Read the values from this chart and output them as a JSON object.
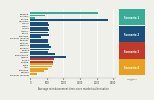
{
  "entries": [
    {
      "label": "Bulgaria",
      "value": 2050,
      "color": "#3aab96"
    },
    {
      "label": "Portugal",
      "value": 460,
      "color": "#3aab96"
    },
    {
      "label": "Estonia",
      "value": 130,
      "color": "#3aab96"
    },
    {
      "label": "Denmark",
      "value": 2350,
      "color": "#1b4f7a"
    },
    {
      "label": "Cyprus",
      "value": 545,
      "color": "#1b4f7a"
    },
    {
      "label": "Czech",
      "value": 555,
      "color": "#1b4f7a"
    },
    {
      "label": "Ireland",
      "value": 540,
      "color": "#1b4f7a"
    },
    {
      "label": "Austria",
      "value": 560,
      "color": "#1b4f7a"
    },
    {
      "label": "Latvia",
      "value": 545,
      "color": "#1b4f7a"
    },
    {
      "label": "Lithuania",
      "value": 555,
      "color": "#1b4f7a"
    },
    {
      "label": "Belgium (engine)",
      "value": 335,
      "color": "#1b4f7a"
    },
    {
      "label": "Belgium",
      "value": 545,
      "color": "#1b4f7a"
    },
    {
      "label": "Belgium",
      "value": 540,
      "color": "#1b4f7a"
    },
    {
      "label": "Romania",
      "value": 560,
      "color": "#1b4f7a"
    },
    {
      "label": "Slovakia",
      "value": 620,
      "color": "#1b4f7a"
    },
    {
      "label": "Finland",
      "value": 560,
      "color": "#1b4f7a"
    },
    {
      "label": "Hungary",
      "value": 535,
      "color": "#1b4f7a"
    },
    {
      "label": "Luxembourg",
      "value": 750,
      "color": "#1b4f7a"
    },
    {
      "label": "Greece",
      "value": 1080,
      "color": "#1b4f7a"
    },
    {
      "label": "Poland",
      "value": 730,
      "color": "#c0392b"
    },
    {
      "label": "Croatia",
      "value": 700,
      "color": "#c0392b"
    },
    {
      "label": "Spain",
      "value": 680,
      "color": "#e8a020"
    },
    {
      "label": "Italy",
      "value": 660,
      "color": "#e8a020"
    },
    {
      "label": "Lithuania",
      "value": 535,
      "color": "#e8a020"
    },
    {
      "label": "Sweden",
      "value": 430,
      "color": "#e8a020"
    },
    {
      "label": "Belgium (engine)",
      "value": 190,
      "color": "#e8a020"
    }
  ],
  "legend": [
    {
      "label": "Scenario 1",
      "color": "#3aab96"
    },
    {
      "label": "Scenario 2",
      "color": "#1b4f7a"
    },
    {
      "label": "Scenario 3",
      "color": "#c0392b"
    },
    {
      "label": "Scenario 4",
      "color": "#e8a020"
    }
  ],
  "xlabel": "Average reimbursement time since market authorisation",
  "xlim": [
    0,
    2600
  ],
  "xticks": [
    0,
    500,
    1000,
    1500,
    2000,
    2500
  ],
  "bg_color": "#f0f0eb",
  "bar_height": 0.75
}
